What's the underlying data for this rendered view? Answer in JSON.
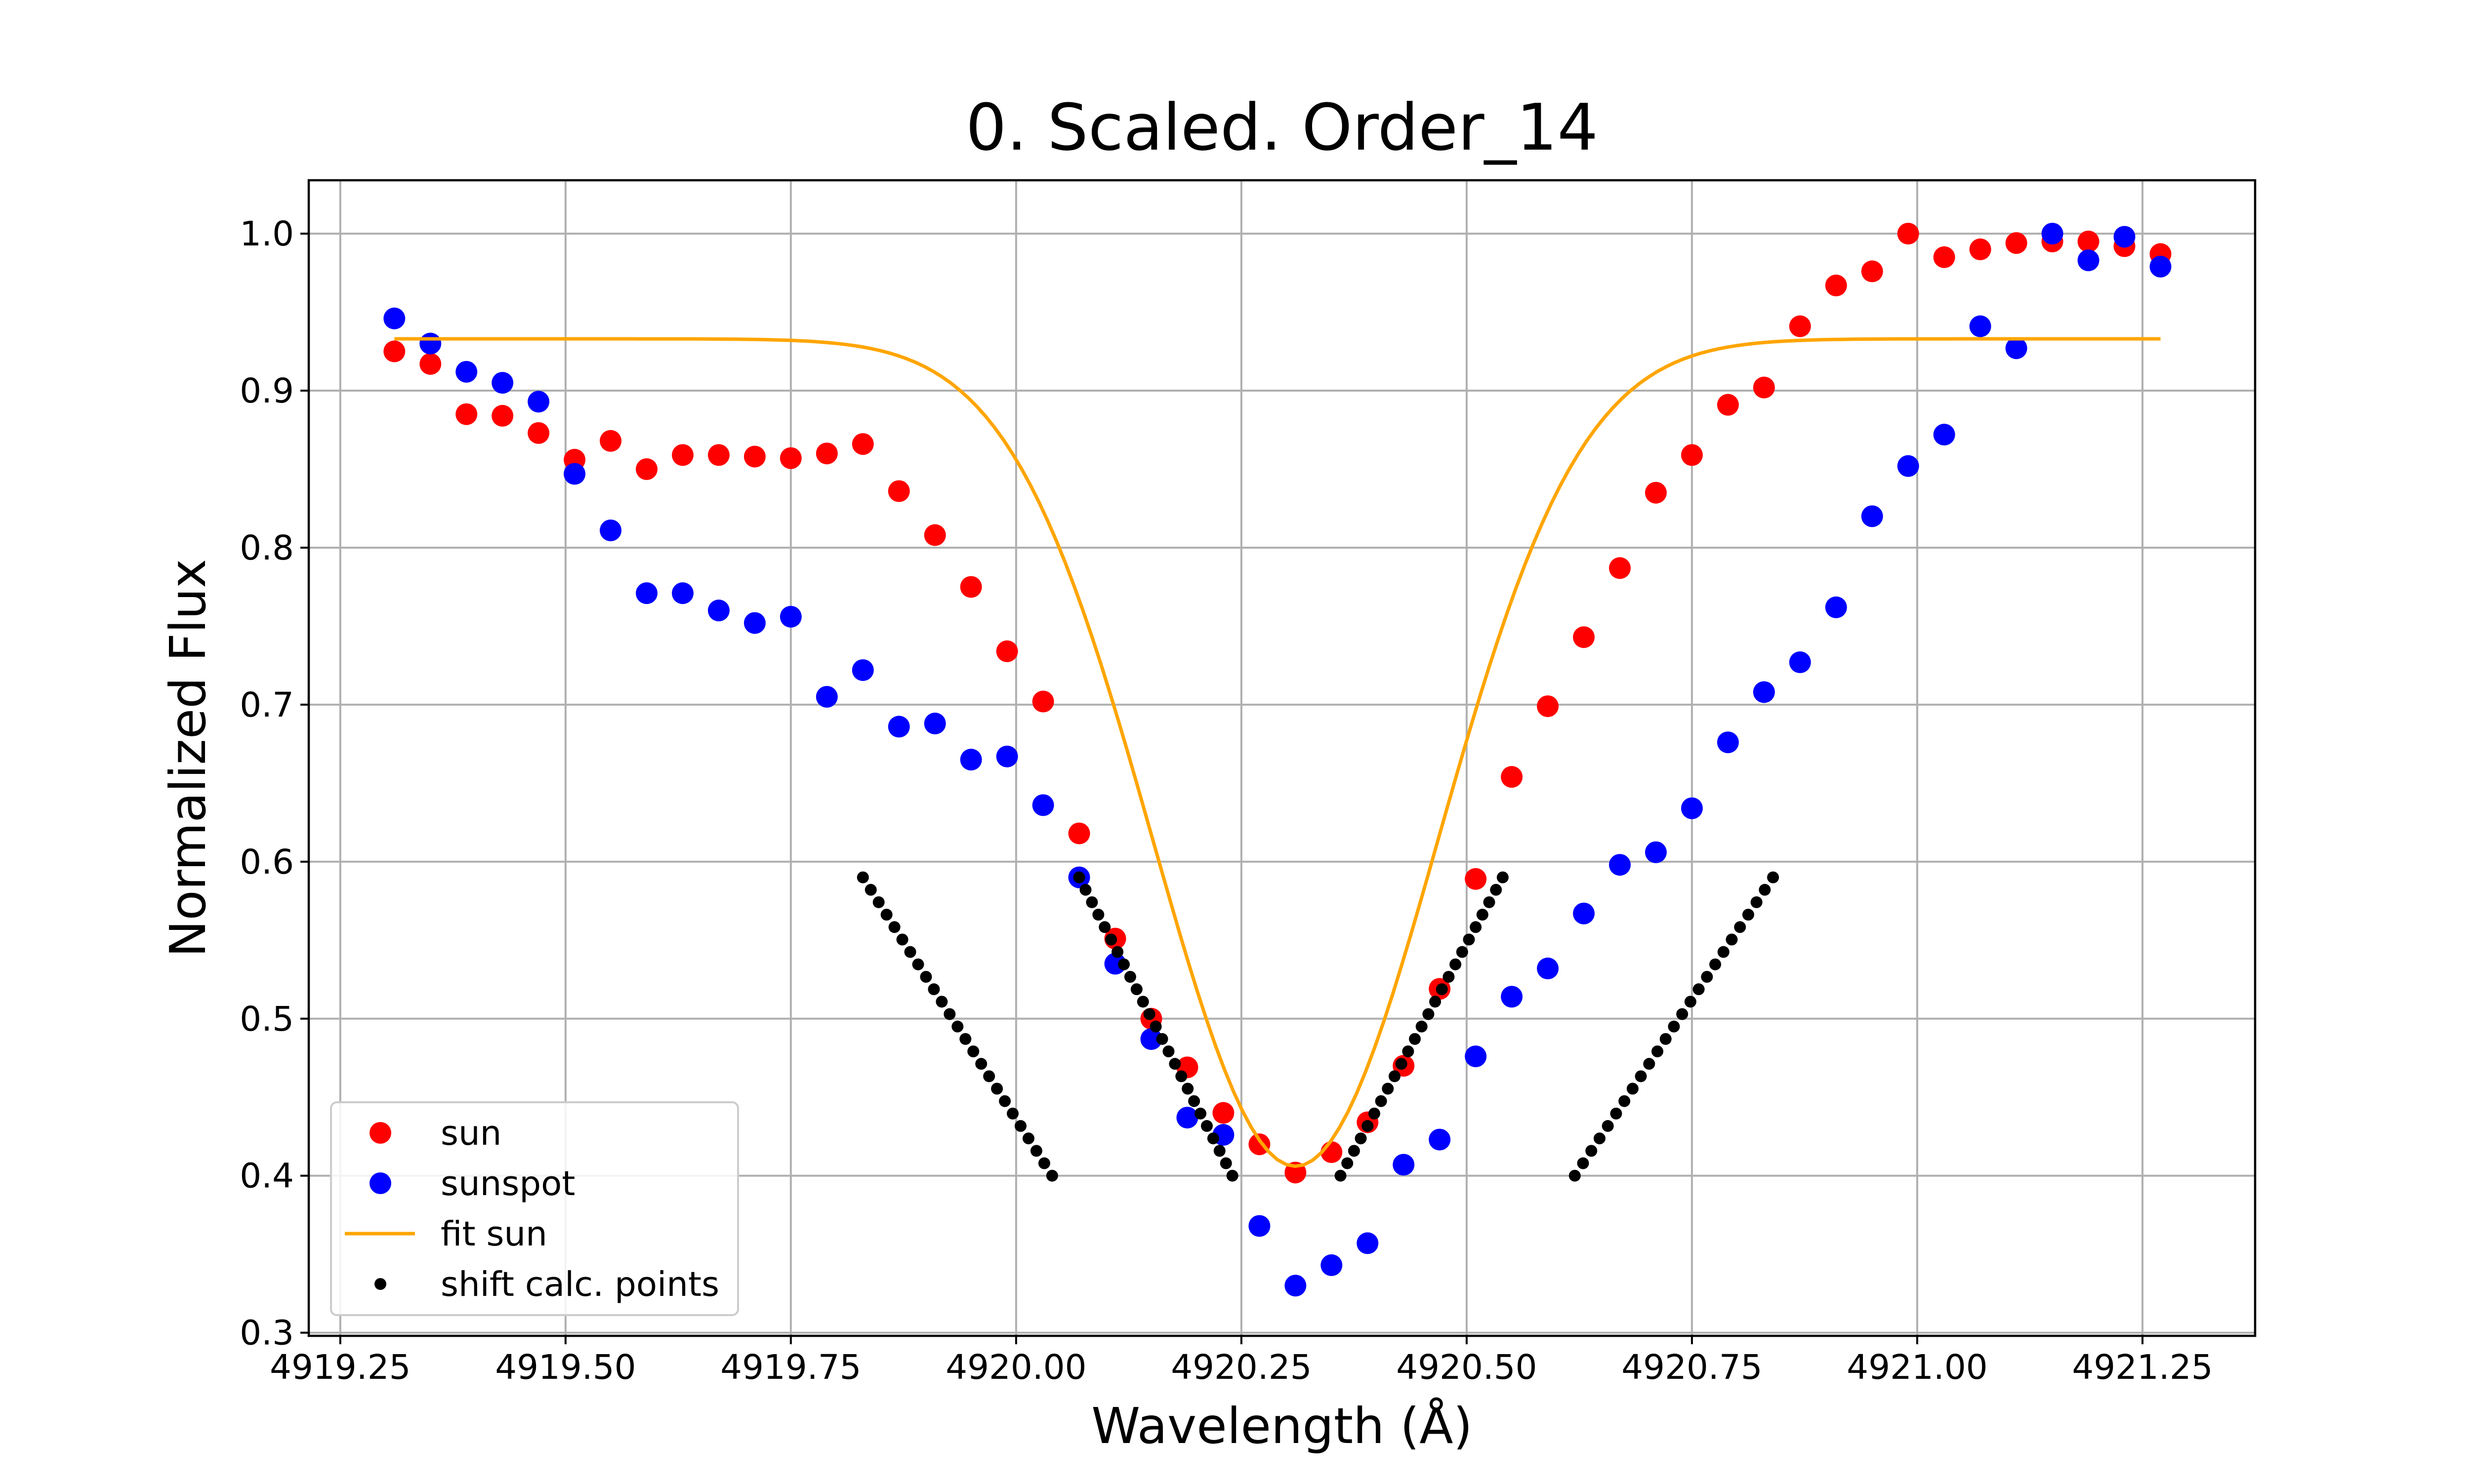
{
  "chart_data": {
    "type": "scatter",
    "title": "0. Scaled. Order_14",
    "xlabel": "Wavelength (Å)",
    "ylabel": "Normalized Flux",
    "xlim": [
      4919.215,
      4921.375
    ],
    "ylim": [
      0.298,
      1.034
    ],
    "xticks": [
      {
        "value": 4919.25,
        "label": "4919.25"
      },
      {
        "value": 4919.5,
        "label": "4919.50"
      },
      {
        "value": 4919.75,
        "label": "4919.75"
      },
      {
        "value": 4920.0,
        "label": "4920.00"
      },
      {
        "value": 4920.25,
        "label": "4920.25"
      },
      {
        "value": 4920.5,
        "label": "4920.50"
      },
      {
        "value": 4920.75,
        "label": "4920.75"
      },
      {
        "value": 4921.0,
        "label": "4921.00"
      },
      {
        "value": 4921.25,
        "label": "4921.25"
      }
    ],
    "yticks": [
      {
        "value": 0.3,
        "label": "0.3"
      },
      {
        "value": 0.4,
        "label": "0.4"
      },
      {
        "value": 0.5,
        "label": "0.5"
      },
      {
        "value": 0.6,
        "label": "0.6"
      },
      {
        "value": 0.7,
        "label": "0.7"
      },
      {
        "value": 0.8,
        "label": "0.8"
      },
      {
        "value": 0.9,
        "label": "0.9"
      },
      {
        "value": 1.0,
        "label": "1.0"
      }
    ],
    "grid": true,
    "legend_position": "lower-left",
    "series": [
      {
        "name": "sun",
        "kind": "scatter",
        "color": "#ff0000",
        "x": [
          4919.31,
          4919.35,
          4919.39,
          4919.43,
          4919.47,
          4919.51,
          4919.55,
          4919.59,
          4919.63,
          4919.67,
          4919.71,
          4919.75,
          4919.79,
          4919.83,
          4919.87,
          4919.91,
          4919.95,
          4919.99,
          4920.03,
          4920.07,
          4920.11,
          4920.15,
          4920.19,
          4920.23,
          4920.27,
          4920.31,
          4920.35,
          4920.39,
          4920.43,
          4920.47,
          4920.51,
          4920.55,
          4920.59,
          4920.63,
          4920.67,
          4920.71,
          4920.75,
          4920.79,
          4920.83,
          4920.87,
          4920.91,
          4920.95,
          4920.99,
          4921.03,
          4921.07,
          4921.11,
          4921.15,
          4921.19,
          4921.23,
          4921.27
        ],
        "y": [
          0.925,
          0.917,
          0.885,
          0.884,
          0.873,
          0.856,
          0.868,
          0.85,
          0.859,
          0.859,
          0.858,
          0.857,
          0.86,
          0.866,
          0.836,
          0.808,
          0.775,
          0.734,
          0.702,
          0.618,
          0.551,
          0.5,
          0.469,
          0.44,
          0.42,
          0.402,
          0.415,
          0.434,
          0.47,
          0.519,
          0.589,
          0.654,
          0.699,
          0.743,
          0.787,
          0.835,
          0.859,
          0.891,
          0.902,
          0.941,
          0.967,
          0.976,
          1.0,
          0.985,
          0.99,
          0.994,
          0.995,
          0.995,
          0.992,
          0.987
        ]
      },
      {
        "name": "sunspot",
        "kind": "scatter",
        "color": "#0000ff",
        "x": [
          4919.31,
          4919.35,
          4919.39,
          4919.43,
          4919.47,
          4919.51,
          4919.55,
          4919.59,
          4919.63,
          4919.67,
          4919.71,
          4919.75,
          4919.79,
          4919.83,
          4919.87,
          4919.91,
          4919.95,
          4919.99,
          4920.03,
          4920.07,
          4920.11,
          4920.15,
          4920.19,
          4920.23,
          4920.27,
          4920.31,
          4920.35,
          4920.39,
          4920.43,
          4920.47,
          4920.51,
          4920.55,
          4920.59,
          4920.63,
          4920.67,
          4920.71,
          4920.75,
          4920.79,
          4920.83,
          4920.87,
          4920.91,
          4920.95,
          4920.99,
          4921.03,
          4921.07,
          4921.11,
          4921.15,
          4921.19,
          4921.23,
          4921.27
        ],
        "y": [
          0.946,
          0.93,
          0.912,
          0.905,
          0.893,
          0.847,
          0.811,
          0.771,
          0.771,
          0.76,
          0.752,
          0.756,
          0.705,
          0.722,
          0.686,
          0.688,
          0.665,
          0.667,
          0.636,
          0.59,
          0.535,
          0.487,
          0.437,
          0.426,
          0.368,
          0.33,
          0.343,
          0.357,
          0.407,
          0.423,
          0.476,
          0.514,
          0.532,
          0.567,
          0.598,
          0.606,
          0.634,
          0.676,
          0.708,
          0.727,
          0.762,
          0.82,
          0.852,
          0.872,
          0.941,
          0.927,
          1.0,
          0.983,
          0.998,
          0.979
        ]
      },
      {
        "name": "fit sun",
        "kind": "line",
        "color": "#ffa500",
        "model": {
          "continuum": 0.933,
          "depth": 0.527,
          "center": 4920.31,
          "sigma": 0.158,
          "x_start": 4919.31,
          "x_end": 4921.27,
          "samples": 200
        }
      },
      {
        "name": "shift calc. points",
        "kind": "scatter",
        "color": "#000000",
        "segments": [
          {
            "x_start": 4919.83,
            "y_start": 0.59,
            "x_end": 4920.04,
            "y_end": 0.4,
            "count": 25
          },
          {
            "x_start": 4920.07,
            "y_start": 0.59,
            "x_end": 4920.24,
            "y_end": 0.4,
            "count": 25
          },
          {
            "x_start": 4920.36,
            "y_start": 0.4,
            "x_end": 4920.54,
            "y_end": 0.59,
            "count": 25
          },
          {
            "x_start": 4920.62,
            "y_start": 0.4,
            "x_end": 4920.84,
            "y_end": 0.59,
            "count": 25
          }
        ]
      }
    ]
  }
}
